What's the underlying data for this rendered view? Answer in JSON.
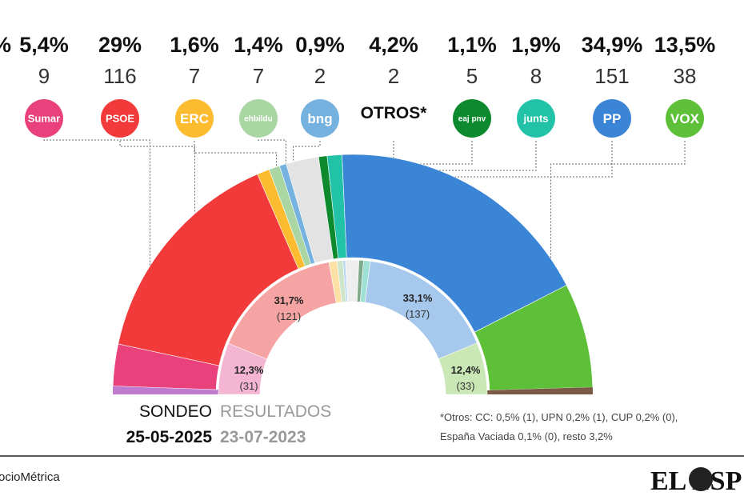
{
  "chart_data": {
    "type": "pie",
    "subtype": "hemicycle",
    "outer_ring": {
      "label": "SONDEO",
      "date": "25-05-2025",
      "parties": [
        {
          "name": "Sumar",
          "pct": "5,4%",
          "seats": "9",
          "color": "#e8417c",
          "logo": "Sumar",
          "value": 5.4
        },
        {
          "name": "PSOE",
          "pct": "29%",
          "seats": "116",
          "color": "#f23a3a",
          "logo": "PSOE",
          "value": 29
        },
        {
          "name": "ERC",
          "pct": "1,6%",
          "seats": "7",
          "color": "#fdbb30",
          "logo": "ERC",
          "value": 1.6
        },
        {
          "name": "EH Bildu",
          "pct": "1,4%",
          "seats": "7",
          "color": "#a9d6a3",
          "logo": "ehbildu",
          "value": 1.4
        },
        {
          "name": "BNG",
          "pct": "0,9%",
          "seats": "2",
          "color": "#76b2e0",
          "logo": "bng",
          "value": 0.9
        },
        {
          "name": "Otros",
          "pct": "4,2%",
          "seats": "2",
          "color": "#e3e3e3",
          "logo": "OTROS*",
          "value": 4.2
        },
        {
          "name": "PNV",
          "pct": "1,1%",
          "seats": "5",
          "color": "#0d8a2e",
          "logo": "eaj pnv",
          "value": 1.1
        },
        {
          "name": "Junts",
          "pct": "1,9%",
          "seats": "8",
          "color": "#22c2a8",
          "logo": "junts",
          "value": 1.9
        },
        {
          "name": "PP",
          "pct": "34,9%",
          "seats": "151",
          "color": "#3b85d6",
          "logo": "PP",
          "value": 34.9
        },
        {
          "name": "VOX",
          "pct": "13,5%",
          "seats": "38",
          "color": "#5ec039",
          "logo": "VOX",
          "value": 13.5
        }
      ]
    },
    "inner_ring": {
      "label": "RESULTADOS",
      "date": "23-07-2023",
      "labels": [
        {
          "party": "Sumar",
          "pct": "12,3%",
          "seats": "(31)"
        },
        {
          "party": "PSOE",
          "pct": "31,7%",
          "seats": "(121)"
        },
        {
          "party": "PP",
          "pct": "33,1%",
          "seats": "(137)"
        },
        {
          "party": "VOX",
          "pct": "12,4%",
          "seats": "(33)"
        }
      ],
      "segments": [
        {
          "party": "Sumar",
          "value": 12.3,
          "color": "#f3b5d2"
        },
        {
          "party": "PSOE",
          "value": 31.7,
          "color": "#f6a3a3"
        },
        {
          "party": "ERC",
          "value": 1.9,
          "color": "#fde0a6"
        },
        {
          "party": "EH Bildu",
          "value": 1.4,
          "color": "#cde6c9"
        },
        {
          "party": "BNG",
          "value": 0.6,
          "color": "#bcd8f0"
        },
        {
          "party": "Otros",
          "value": 3.2,
          "color": "#eeeeee"
        },
        {
          "party": "PNV",
          "value": 1.1,
          "color": "#7fa88a"
        },
        {
          "party": "Junts",
          "value": 1.6,
          "color": "#9fe0d4"
        },
        {
          "party": "PP",
          "value": 33.1,
          "color": "#a6c8ec"
        },
        {
          "party": "VOX",
          "value": 12.4,
          "color": "#c9e8b5"
        }
      ]
    },
    "outer_extra_colors": [
      "#c07ad0",
      "#7a5a44"
    ]
  },
  "partial_left": {
    "pct_fragment": "%"
  },
  "footnote": {
    "line1": "*Otros: CC: 0,5% (1), UPN 0,2% (1), CUP 0,2% (0),",
    "line2": "España Vaciada 0,1% (0), resto 3,2%"
  },
  "source": "ocioMétrica",
  "brand": "EL ESP"
}
